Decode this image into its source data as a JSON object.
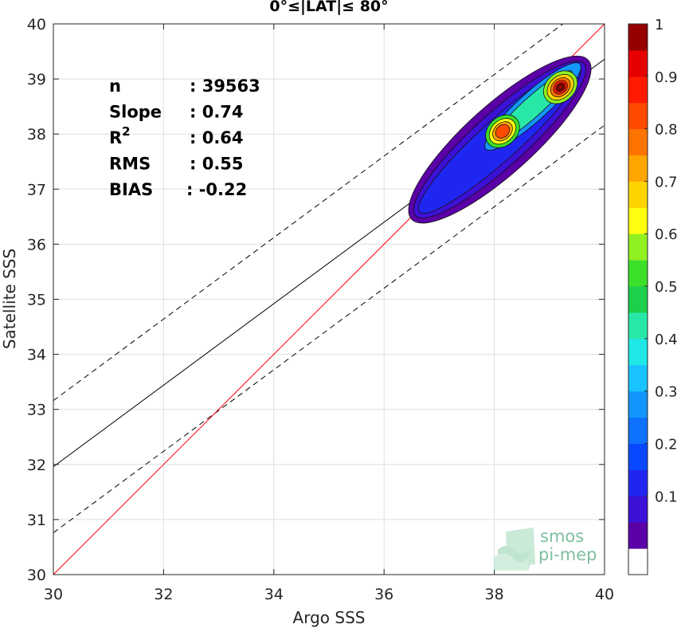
{
  "chart_data": {
    "type": "scatter",
    "title": "0°≤|LAT|≤ 80°",
    "xlabel": "Argo SSS",
    "ylabel": "Satellite SSS",
    "xlim": [
      30,
      40
    ],
    "ylim": [
      30,
      40
    ],
    "xticks": [
      "30",
      "32",
      "34",
      "36",
      "38",
      "40"
    ],
    "yticks": [
      "30",
      "31",
      "32",
      "33",
      "34",
      "35",
      "36",
      "37",
      "38",
      "39",
      "40"
    ],
    "grid": true,
    "stats": [
      {
        "key": "n",
        "sep": ": 39563"
      },
      {
        "key": "Slope",
        "sep": ": 0.74"
      },
      {
        "key": "R",
        "sup": "2",
        "sep": ": 0.64"
      },
      {
        "key": "RMS",
        "sep": ": 0.55"
      },
      {
        "key": "BIAS",
        "sep": ": -0.22"
      }
    ],
    "lines": {
      "identity": {
        "slope": 1,
        "intercept": 0,
        "color": "#ff0000"
      },
      "regression": {
        "slope": 0.74,
        "intercept": 9.76,
        "color": "#000000"
      },
      "upper_bound": {
        "slope": 0.74,
        "intercept": 10.96,
        "color": "#000000",
        "dash": true
      },
      "lower_bound": {
        "slope": 0.74,
        "intercept": 8.56,
        "color": "#000000",
        "dash": true
      }
    },
    "density_peaks": [
      {
        "x": 38.15,
        "y": 38.05,
        "value": 0.85
      },
      {
        "x": 39.2,
        "y": 38.85,
        "value": 1.0
      }
    ],
    "colorbar": {
      "ticks": [
        "0.1",
        "0.2",
        "0.3",
        "0.4",
        "0.5",
        "0.6",
        "0.7",
        "0.8",
        "0.9",
        "1"
      ],
      "range": [
        0,
        1
      ],
      "colors": [
        "#ffffff",
        "#5b00a6",
        "#3d10d6",
        "#2026f2",
        "#0a48ff",
        "#0e72ff",
        "#1496ff",
        "#18c3ff",
        "#20e8e6",
        "#28e8a8",
        "#1cd04c",
        "#3ce02a",
        "#90f020",
        "#ffff10",
        "#ffd300",
        "#ffa500",
        "#ff7400",
        "#ff4a00",
        "#ff1a00",
        "#e60000",
        "#960000"
      ]
    }
  },
  "logo": {
    "line1": "smos",
    "line2": "pi-mep"
  }
}
